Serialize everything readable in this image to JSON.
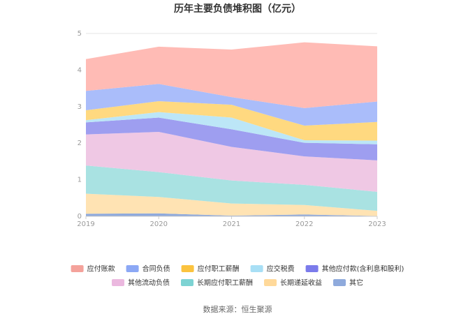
{
  "chart_data": {
    "type": "area",
    "stacked": true,
    "title": "历年主要负债堆积图（亿元）",
    "x": [
      "2019",
      "2020",
      "2021",
      "2022",
      "2023"
    ],
    "ylim": [
      0,
      5
    ],
    "yticks": [
      "0",
      "1",
      "2",
      "3",
      "4",
      "5"
    ],
    "grid": true,
    "legend_position": "bottom",
    "series": [
      {
        "name": "其它",
        "color": "#8FAADC",
        "values": [
          0.07,
          0.08,
          0.02,
          0.05,
          0.01
        ]
      },
      {
        "name": "长期递延收益",
        "color": "#FFE3B3",
        "values": [
          0.55,
          0.45,
          0.33,
          0.26,
          0.14
        ]
      },
      {
        "name": "长期应付职工薪酬",
        "color": "#A9E2E2",
        "values": [
          0.77,
          0.68,
          0.63,
          0.55,
          0.52
        ]
      },
      {
        "name": "其他流动负债",
        "color": "#EFC8E4",
        "values": [
          0.85,
          1.1,
          0.92,
          0.78,
          0.86
        ]
      },
      {
        "name": "其他应付款(含利息和股利)",
        "color": "#9E9EF0",
        "values": [
          0.33,
          0.39,
          0.48,
          0.37,
          0.44
        ]
      },
      {
        "name": "应交税费",
        "color": "#BCE6F7",
        "values": [
          0.06,
          0.15,
          0.32,
          0.07,
          0.1
        ]
      },
      {
        "name": "应付职工薪酬",
        "color": "#FFD980",
        "values": [
          0.27,
          0.3,
          0.35,
          0.4,
          0.51
        ]
      },
      {
        "name": "合同负债",
        "color": "#AABDFA",
        "values": [
          0.53,
          0.47,
          0.21,
          0.48,
          0.56
        ]
      },
      {
        "name": "应付账款",
        "color": "#FFBBB5",
        "values": [
          0.87,
          1.02,
          1.3,
          1.8,
          1.51
        ]
      }
    ],
    "legend_order": [
      "应付账款",
      "合同负债",
      "应付职工薪酬",
      "应交税费",
      "其他应付款(含利息和股利)",
      "其他流动负债",
      "长期应付职工薪酬",
      "长期递延收益",
      "其它"
    ]
  },
  "legend_colors": {
    "应付账款": "#F4A29B",
    "合同负债": "#8CA8F5",
    "应付职工薪酬": "#FBC33F",
    "应交税费": "#A8DFF5",
    "其他应付款(含利息和股利)": "#7B7BEB",
    "其他流动负债": "#EBB8DF",
    "长期应付职工薪酬": "#7DD3D3",
    "长期递延收益": "#FFD99A",
    "其它": "#8FAADC"
  },
  "source": "数据来源：恒生聚源"
}
